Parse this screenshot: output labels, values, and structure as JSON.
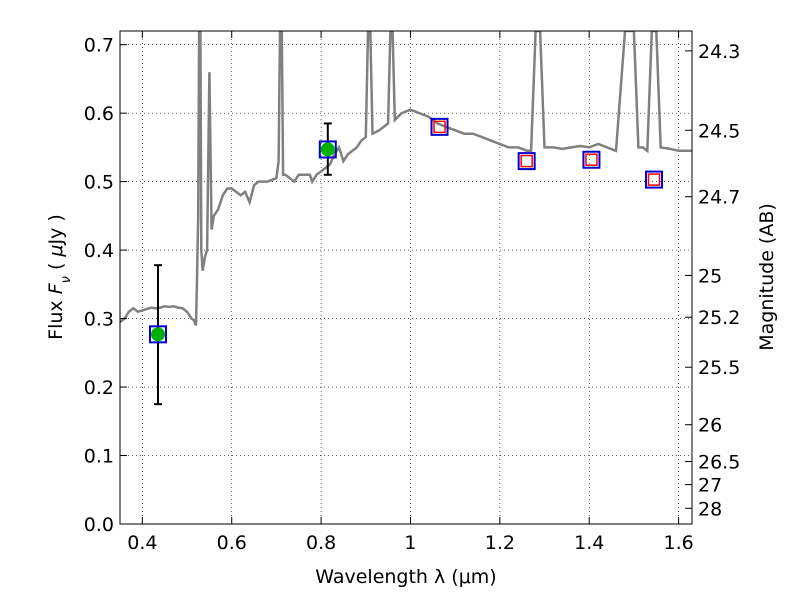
{
  "chart_data": {
    "type": "scatter",
    "xlabel": "Wavelength  λ (μm)",
    "ylabel": "Flux  F_ν  ( μJy )",
    "ylabel_right": "Magnitude (AB)",
    "xlim": [
      0.35,
      1.63
    ],
    "ylim": [
      0.0,
      0.72
    ],
    "grid": true,
    "x_ticks": [
      0.4,
      0.6,
      0.8,
      1.0,
      1.2,
      1.4,
      1.6
    ],
    "x_tick_labels": [
      "0.4",
      "0.6",
      "0.8",
      "1",
      "1.2",
      "1.4",
      "1.6"
    ],
    "y_ticks": [
      0.0,
      0.1,
      0.2,
      0.3,
      0.4,
      0.5,
      0.6,
      0.7
    ],
    "y_tick_labels": [
      "0.0",
      "0.1",
      "0.2",
      "0.3",
      "0.4",
      "0.5",
      "0.6",
      "0.7"
    ],
    "right_ticks": [
      {
        "label": "24.3",
        "flux": 0.691
      },
      {
        "label": "24.5",
        "flux": 0.575
      },
      {
        "label": "24.7",
        "flux": 0.478
      },
      {
        "label": "25",
        "flux": 0.363
      },
      {
        "label": "25.2",
        "flux": 0.302
      },
      {
        "label": "25.5",
        "flux": 0.229
      },
      {
        "label": "26",
        "flux": 0.145
      },
      {
        "label": "26.5",
        "flux": 0.0912
      },
      {
        "label": "27",
        "flux": 0.0575
      },
      {
        "label": "28",
        "flux": 0.0229
      }
    ],
    "series": [
      {
        "kind": "template_spectrum",
        "color": "#808080",
        "points": [
          [
            0.35,
            0.295
          ],
          [
            0.36,
            0.3
          ],
          [
            0.37,
            0.31
          ],
          [
            0.38,
            0.315
          ],
          [
            0.39,
            0.31
          ],
          [
            0.4,
            0.312
          ],
          [
            0.41,
            0.314
          ],
          [
            0.42,
            0.316
          ],
          [
            0.43,
            0.315
          ],
          [
            0.44,
            0.316
          ],
          [
            0.45,
            0.318
          ],
          [
            0.46,
            0.317
          ],
          [
            0.47,
            0.318
          ],
          [
            0.48,
            0.316
          ],
          [
            0.49,
            0.315
          ],
          [
            0.5,
            0.31
          ],
          [
            0.51,
            0.3
          ],
          [
            0.515,
            0.298
          ],
          [
            0.52,
            0.29
          ],
          [
            0.522,
            0.35
          ],
          [
            0.525,
            0.45
          ],
          [
            0.527,
            0.72
          ],
          [
            0.53,
            0.72
          ],
          [
            0.532,
            0.4
          ],
          [
            0.535,
            0.37
          ],
          [
            0.54,
            0.39
          ],
          [
            0.545,
            0.4
          ],
          [
            0.55,
            0.66
          ],
          [
            0.555,
            0.43
          ],
          [
            0.56,
            0.45
          ],
          [
            0.57,
            0.46
          ],
          [
            0.58,
            0.48
          ],
          [
            0.59,
            0.49
          ],
          [
            0.6,
            0.49
          ],
          [
            0.62,
            0.48
          ],
          [
            0.63,
            0.485
          ],
          [
            0.64,
            0.47
          ],
          [
            0.65,
            0.495
          ],
          [
            0.66,
            0.5
          ],
          [
            0.68,
            0.5
          ],
          [
            0.7,
            0.505
          ],
          [
            0.705,
            0.53
          ],
          [
            0.708,
            0.72
          ],
          [
            0.712,
            0.72
          ],
          [
            0.715,
            0.51
          ],
          [
            0.72,
            0.51
          ],
          [
            0.74,
            0.5
          ],
          [
            0.75,
            0.51
          ],
          [
            0.76,
            0.51
          ],
          [
            0.775,
            0.51
          ],
          [
            0.78,
            0.5
          ],
          [
            0.79,
            0.51
          ],
          [
            0.8,
            0.515
          ],
          [
            0.81,
            0.52
          ],
          [
            0.82,
            0.525
          ],
          [
            0.83,
            0.54
          ],
          [
            0.84,
            0.55
          ],
          [
            0.85,
            0.53
          ],
          [
            0.86,
            0.54
          ],
          [
            0.87,
            0.545
          ],
          [
            0.88,
            0.55
          ],
          [
            0.89,
            0.56
          ],
          [
            0.9,
            0.565
          ],
          [
            0.905,
            0.72
          ],
          [
            0.91,
            0.72
          ],
          [
            0.915,
            0.57
          ],
          [
            0.93,
            0.575
          ],
          [
            0.94,
            0.58
          ],
          [
            0.95,
            0.585
          ],
          [
            0.955,
            0.72
          ],
          [
            0.96,
            0.72
          ],
          [
            0.965,
            0.59
          ],
          [
            0.98,
            0.6
          ],
          [
            1.0,
            0.605
          ],
          [
            1.02,
            0.6
          ],
          [
            1.04,
            0.595
          ],
          [
            1.05,
            0.59
          ],
          [
            1.06,
            0.585
          ],
          [
            1.08,
            0.58
          ],
          [
            1.1,
            0.575
          ],
          [
            1.12,
            0.57
          ],
          [
            1.14,
            0.57
          ],
          [
            1.16,
            0.565
          ],
          [
            1.18,
            0.56
          ],
          [
            1.2,
            0.555
          ],
          [
            1.22,
            0.55
          ],
          [
            1.24,
            0.55
          ],
          [
            1.25,
            0.548
          ],
          [
            1.26,
            0.545
          ],
          [
            1.27,
            0.545
          ],
          [
            1.28,
            0.72
          ],
          [
            1.29,
            0.72
          ],
          [
            1.3,
            0.55
          ],
          [
            1.32,
            0.55
          ],
          [
            1.34,
            0.548
          ],
          [
            1.36,
            0.55
          ],
          [
            1.38,
            0.552
          ],
          [
            1.4,
            0.55
          ],
          [
            1.42,
            0.555
          ],
          [
            1.44,
            0.55
          ],
          [
            1.46,
            0.545
          ],
          [
            1.48,
            0.72
          ],
          [
            1.5,
            0.72
          ],
          [
            1.51,
            0.55
          ],
          [
            1.52,
            0.55
          ],
          [
            1.53,
            0.545
          ],
          [
            1.54,
            0.72
          ],
          [
            1.55,
            0.72
          ],
          [
            1.56,
            0.55
          ],
          [
            1.58,
            0.548
          ],
          [
            1.6,
            0.545
          ],
          [
            1.63,
            0.545
          ]
        ]
      },
      {
        "kind": "observed",
        "marker": "circle",
        "color": "#00b000",
        "edge": "#0000cc",
        "points": [
          {
            "x": 0.435,
            "y": 0.277,
            "yerr_low": 0.175,
            "yerr_high": 0.378
          },
          {
            "x": 0.815,
            "y": 0.547,
            "yerr_low": 0.51,
            "yerr_high": 0.585
          }
        ]
      },
      {
        "kind": "model_photometry",
        "marker": "square",
        "edge": "#0000cc",
        "points": [
          {
            "x": 0.435,
            "y": 0.277
          },
          {
            "x": 0.815,
            "y": 0.547
          },
          {
            "x": 1.065,
            "y": 0.58
          },
          {
            "x": 1.26,
            "y": 0.53
          },
          {
            "x": 1.405,
            "y": 0.532
          },
          {
            "x": 1.545,
            "y": 0.503
          }
        ]
      },
      {
        "kind": "upper_limits",
        "marker": "square",
        "edge": "#ff0000",
        "points": [
          {
            "x": 1.065,
            "y": 0.58
          },
          {
            "x": 1.26,
            "y": 0.53
          },
          {
            "x": 1.405,
            "y": 0.532
          },
          {
            "x": 1.545,
            "y": 0.503
          }
        ]
      }
    ]
  }
}
